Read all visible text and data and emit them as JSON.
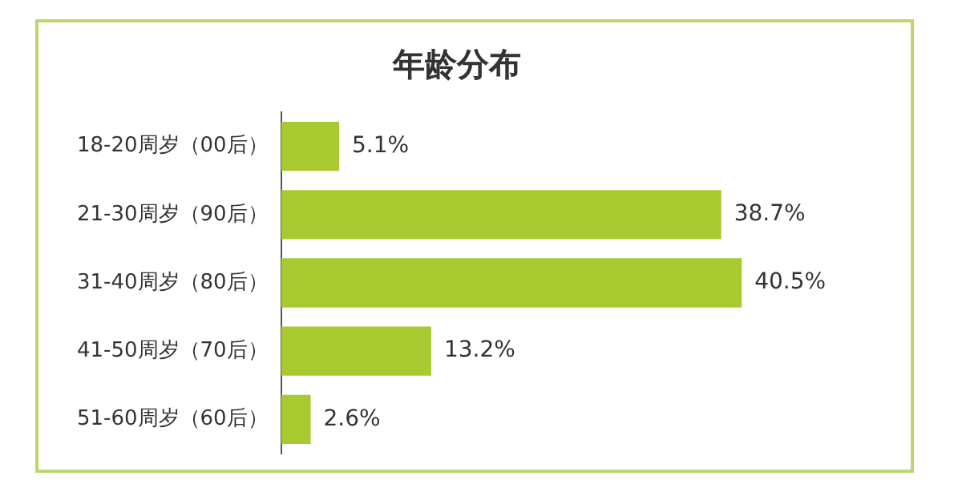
{
  "chart_data": {
    "type": "bar",
    "orientation": "horizontal",
    "title": "年龄分布",
    "categories": [
      "18-20周岁（00后）",
      "21-30周岁（90后）",
      "31-40周岁（80后）",
      "41-50周岁（70后）",
      "51-60周岁（60后）"
    ],
    "values": [
      5.1,
      38.7,
      40.5,
      13.2,
      2.6
    ],
    "value_labels": [
      "5.1%",
      "38.7%",
      "40.5%",
      "13.2%",
      "2.6%"
    ],
    "color": "#a8c92f",
    "tick_labels": "y"
  }
}
